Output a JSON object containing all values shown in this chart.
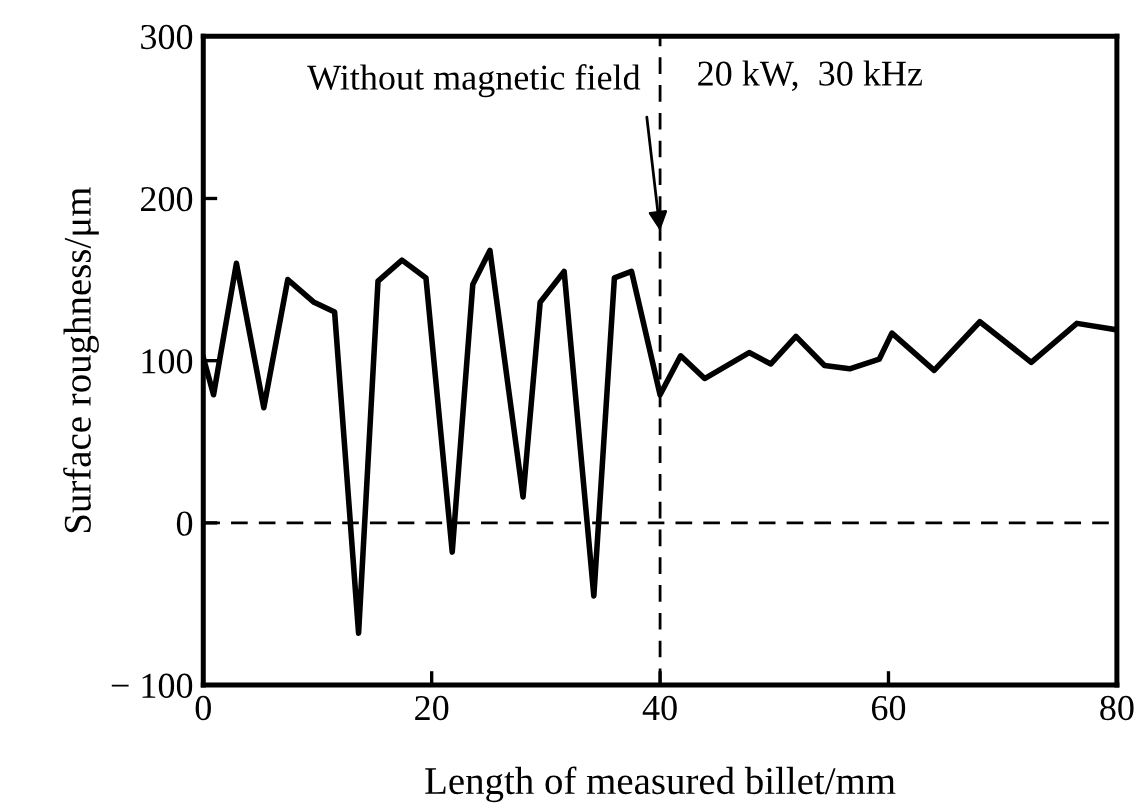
{
  "chart_data": {
    "type": "line",
    "xlabel": "Length of measured billet/mm",
    "ylabel": "Surface roughness/μm",
    "x": [
      0,
      0.9,
      2.9,
      5.3,
      7.4,
      9.7,
      11.5,
      13.6,
      15.3,
      17.4,
      19.5,
      21.8,
      23.6,
      25.1,
      28.0,
      29.5,
      31.6,
      34.2,
      36.0,
      37.5,
      40.0,
      41.8,
      43.9,
      47.8,
      49.7,
      51.9,
      54.4,
      56.6,
      59.2,
      60.3,
      64.0,
      68.0,
      72.5,
      76.5,
      80
    ],
    "series": [
      {
        "color": "#000000",
        "values": [
          102,
          79,
          160,
          71,
          150,
          136,
          130,
          -68,
          149,
          162,
          151,
          -18,
          147,
          168,
          16,
          136,
          155,
          -45,
          151,
          155,
          79,
          103,
          89,
          105,
          98,
          115,
          97,
          95,
          101,
          117,
          94,
          124,
          99,
          123,
          119
        ]
      }
    ],
    "xlim": [
      0,
      80
    ],
    "xticks": [
      0,
      20,
      40,
      60,
      80
    ],
    "ylim": [
      -100,
      300
    ],
    "yticks": [
      {
        "value": -100,
        "label": "− 100"
      },
      0,
      100,
      200,
      300
    ],
    "ref_lines": [
      {
        "axis": "y",
        "value": 0,
        "color": "#000000",
        "line_style": "dashed"
      },
      {
        "axis": "x",
        "value": 40,
        "color": "#000000",
        "line_style": "dashed"
      }
    ],
    "annotations": [
      {
        "text": "Without magnetic field",
        "x": 40,
        "y": 180
      },
      "20 kW,  30 kHz"
    ],
    "grid": false,
    "legend": false,
    "marker": "none",
    "line_style": "solid"
  }
}
